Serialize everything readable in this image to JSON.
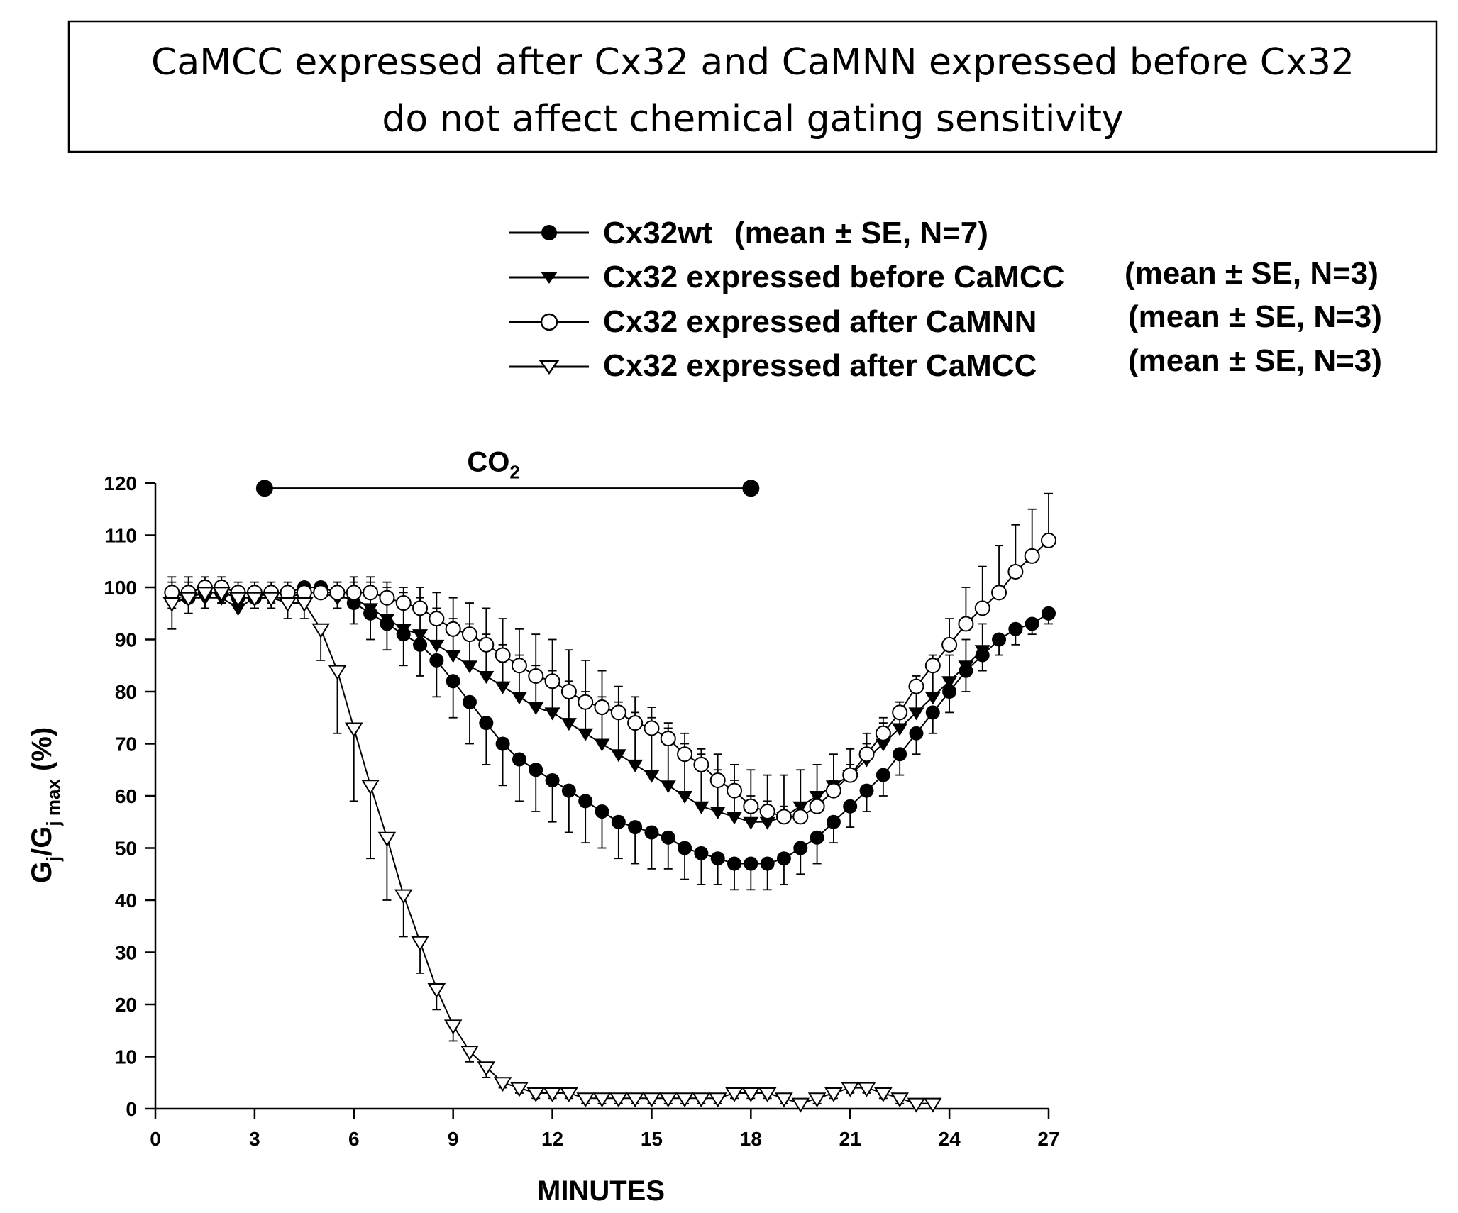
{
  "title": {
    "line1": "CaMCC expressed after Cx32 and CaMNN expressed before Cx32",
    "line2": "do not affect chemical gating sensitivity"
  },
  "legend": [
    {
      "label": "Cx32wt",
      "stat": "(mean ± SE, N=7)"
    },
    {
      "label": "Cx32 expressed before CaMCC",
      "stat": "(mean ± SE, N=3)"
    },
    {
      "label": "Cx32 expressed after CaMNN",
      "stat": "(mean ± SE, N=3)"
    },
    {
      "label": "Cx32 expressed after CaMCC",
      "stat": "(mean ± SE, N=3)"
    }
  ],
  "chart_data": {
    "type": "line",
    "xlabel": "MINUTES",
    "ylabel_main": "G",
    "ylabel_sub1": "j",
    "ylabel_mid": "/G",
    "ylabel_sub2": "j max",
    "ylabel_unit": " (%)",
    "xlim": [
      0,
      27
    ],
    "ylim": [
      0,
      120
    ],
    "xticks": [
      0,
      3,
      6,
      9,
      12,
      15,
      18,
      21,
      24,
      27
    ],
    "yticks": [
      0,
      10,
      20,
      30,
      40,
      50,
      60,
      70,
      80,
      90,
      100,
      110,
      120
    ],
    "co2_bar": {
      "label_main": "CO",
      "label_sub": "2",
      "start": 3.3,
      "end": 18.0,
      "y": 119
    },
    "series": [
      {
        "name": "Cx32wt",
        "marker": "circle-filled",
        "x": [
          0.5,
          1,
          1.5,
          2,
          2.5,
          3,
          3.5,
          4,
          4.5,
          5,
          5.5,
          6,
          6.5,
          7,
          7.5,
          8,
          8.5,
          9,
          9.5,
          10,
          10.5,
          11,
          11.5,
          12,
          12.5,
          13,
          13.5,
          14,
          14.5,
          15,
          15.5,
          16,
          16.5,
          17,
          17.5,
          18,
          18.5,
          19,
          19.5,
          20,
          20.5,
          21,
          21.5,
          22,
          22.5,
          23,
          23.5,
          24,
          24.5,
          25,
          25.5,
          26,
          26.5,
          27
        ],
        "y": [
          99,
          98,
          99,
          99,
          98,
          98,
          99,
          99,
          100,
          100,
          99,
          97,
          95,
          93,
          91,
          89,
          86,
          82,
          78,
          74,
          70,
          67,
          65,
          63,
          61,
          59,
          57,
          55,
          54,
          53,
          52,
          50,
          49,
          48,
          47,
          47,
          47,
          48,
          50,
          52,
          55,
          58,
          61,
          64,
          68,
          72,
          76,
          80,
          84,
          87,
          90,
          92,
          93,
          95
        ],
        "err": [
          3,
          3,
          3,
          2,
          2,
          2,
          2,
          2,
          2,
          2,
          3,
          4,
          5,
          5,
          6,
          6,
          7,
          7,
          8,
          8,
          8,
          8,
          8,
          8,
          8,
          8,
          7,
          7,
          7,
          7,
          6,
          6,
          6,
          5,
          5,
          5,
          5,
          5,
          5,
          5,
          4,
          4,
          4,
          4,
          4,
          4,
          4,
          4,
          4,
          3,
          3,
          3,
          2,
          2
        ]
      },
      {
        "name": "Cx32 expressed before CaMCC",
        "marker": "triangle-down-filled",
        "x": [
          0.5,
          1,
          1.5,
          2,
          2.5,
          3,
          3.5,
          4,
          4.5,
          5,
          5.5,
          6,
          6.5,
          7,
          7.5,
          8,
          8.5,
          9,
          9.5,
          10,
          10.5,
          11,
          11.5,
          12,
          12.5,
          13,
          13.5,
          14,
          14.5,
          15,
          15.5,
          16,
          16.5,
          17,
          17.5,
          18,
          18.5,
          19,
          19.5,
          20,
          20.5,
          21,
          21.5,
          22,
          22.5,
          23,
          23.5,
          24,
          24.5,
          25
        ],
        "y": [
          97,
          98,
          98,
          98,
          96,
          98,
          98,
          98,
          99,
          99,
          98,
          98,
          96,
          94,
          92,
          91,
          89,
          87,
          85,
          83,
          81,
          79,
          77,
          76,
          74,
          72,
          70,
          68,
          66,
          64,
          62,
          60,
          58,
          57,
          56,
          55,
          55,
          56,
          58,
          60,
          62,
          64,
          67,
          70,
          73,
          76,
          79,
          82,
          85,
          88
        ],
        "err": [
          5,
          4,
          3,
          3,
          3,
          2,
          2,
          2,
          2,
          2,
          3,
          4,
          6,
          7,
          8,
          9,
          10,
          11,
          12,
          13,
          13,
          13,
          14,
          14,
          14,
          14,
          14,
          13,
          13,
          13,
          12,
          12,
          11,
          11,
          10,
          10,
          9,
          8,
          7,
          6,
          6,
          5,
          5,
          5,
          5,
          5,
          5,
          5,
          5,
          5
        ]
      },
      {
        "name": "Cx32 expressed after CaMNN",
        "marker": "circle-open",
        "x": [
          0.5,
          1,
          1.5,
          2,
          2.5,
          3,
          3.5,
          4,
          4.5,
          5,
          5.5,
          6,
          6.5,
          7,
          7.5,
          8,
          8.5,
          9,
          9.5,
          10,
          10.5,
          11,
          11.5,
          12,
          12.5,
          13,
          13.5,
          14,
          14.5,
          15,
          15.5,
          16,
          16.5,
          17,
          17.5,
          18,
          18.5,
          19,
          19.5,
          20,
          20.5,
          21,
          21.5,
          22,
          22.5,
          23,
          23.5,
          24,
          24.5,
          25,
          25.5,
          26,
          26.5,
          27
        ],
        "y": [
          99,
          99,
          100,
          100,
          99,
          99,
          99,
          99,
          99,
          99,
          99,
          99,
          99,
          98,
          97,
          96,
          94,
          92,
          91,
          89,
          87,
          85,
          83,
          82,
          80,
          78,
          77,
          76,
          74,
          73,
          71,
          68,
          66,
          63,
          61,
          58,
          57,
          56,
          56,
          58,
          61,
          64,
          68,
          72,
          76,
          81,
          85,
          89,
          93,
          96,
          99,
          103,
          106,
          109
        ],
        "err": [
          2,
          2,
          2,
          2,
          2,
          2,
          2,
          2,
          2,
          2,
          2,
          2,
          2,
          2,
          2,
          2,
          2,
          2,
          2,
          2,
          2,
          2,
          2,
          2,
          2,
          2,
          2,
          2,
          2,
          2,
          2,
          2,
          2,
          2,
          2,
          2,
          2,
          2,
          2,
          2,
          2,
          2,
          2,
          2,
          2,
          2,
          2,
          5,
          7,
          8,
          9,
          9,
          9,
          9
        ]
      },
      {
        "name": "Cx32 expressed after CaMCC",
        "marker": "triangle-down-open",
        "x": [
          0.5,
          1,
          1.5,
          2,
          2.5,
          3,
          3.5,
          4,
          4.5,
          5,
          5.5,
          6,
          6.5,
          7,
          7.5,
          8,
          8.5,
          9,
          9.5,
          10,
          10.5,
          11,
          11.5,
          12,
          12.5,
          13,
          13.5,
          14,
          14.5,
          15,
          15.5,
          16,
          16.5,
          17,
          17.5,
          18,
          18.5,
          19,
          19.5,
          20,
          20.5,
          21,
          21.5,
          22,
          22.5,
          23,
          23.5
        ],
        "y": [
          97,
          98,
          99,
          99,
          98,
          98,
          98,
          97,
          97,
          92,
          84,
          73,
          62,
          52,
          41,
          32,
          23,
          16,
          11,
          8,
          5,
          4,
          3,
          3,
          3,
          2,
          2,
          2,
          2,
          2,
          2,
          2,
          2,
          2,
          3,
          3,
          3,
          2,
          1,
          2,
          3,
          4,
          4,
          3,
          2,
          1,
          1
        ],
        "err": [
          5,
          3,
          3,
          2,
          2,
          2,
          2,
          3,
          3,
          6,
          12,
          14,
          14,
          12,
          8,
          6,
          4,
          3,
          2,
          2,
          1,
          1,
          1,
          1,
          1,
          1,
          1,
          1,
          1,
          1,
          1,
          1,
          1,
          1,
          1,
          1,
          1,
          1,
          1,
          1,
          1,
          1,
          1,
          1,
          1,
          1,
          1
        ]
      }
    ]
  }
}
